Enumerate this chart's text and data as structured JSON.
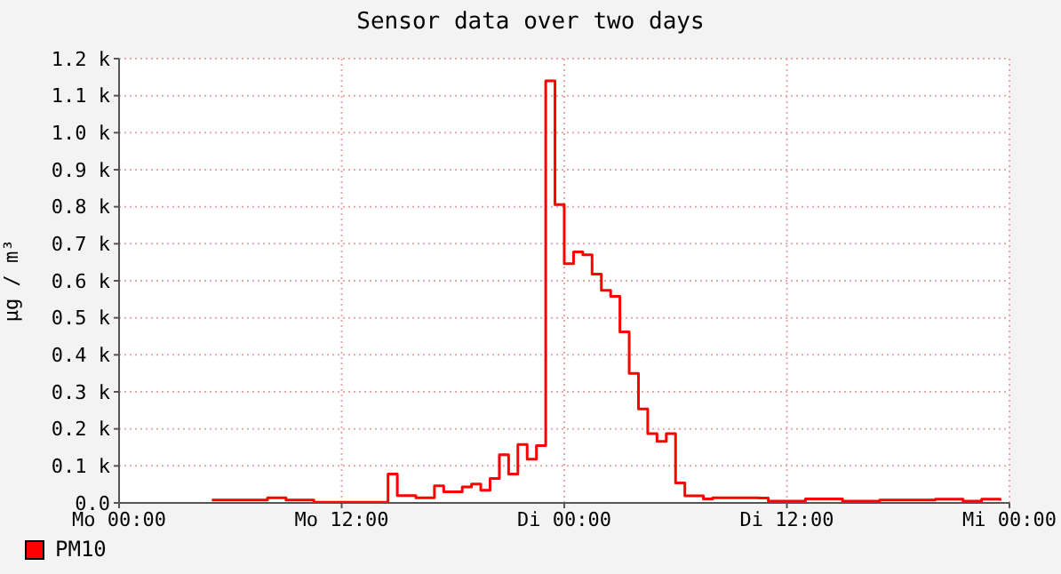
{
  "chart_data": {
    "type": "step",
    "title": "Sensor data over two days",
    "ylabel": "µg / m³",
    "categories": [
      "Mo 00:00",
      null,
      null,
      null,
      null,
      null,
      null,
      null,
      null,
      null,
      null,
      null,
      null,
      null,
      null,
      null,
      null,
      null,
      null,
      null,
      null,
      null,
      null,
      null,
      "Mo 12:00",
      null,
      null,
      null,
      null,
      null,
      null,
      null,
      null,
      null,
      null,
      null,
      null,
      null,
      null,
      null,
      null,
      null,
      null,
      null,
      null,
      null,
      null,
      null,
      "Di 00:00",
      null,
      null,
      null,
      null,
      null,
      null,
      null,
      null,
      null,
      null,
      null,
      null,
      null,
      null,
      null,
      null,
      null,
      null,
      null,
      null,
      null,
      null,
      null,
      "Di 12:00",
      null,
      null,
      null,
      null,
      null,
      null,
      null,
      null,
      null,
      null,
      null,
      null,
      null,
      null,
      null,
      null,
      null,
      null,
      null,
      null,
      null,
      null,
      null,
      "Mi 00:00"
    ],
    "series": [
      {
        "name": "PM10",
        "color": "#ff0000",
        "values": [
          null,
          null,
          null,
          null,
          null,
          null,
          null,
          null,
          null,
          null,
          8,
          8,
          8,
          8,
          8,
          8,
          14,
          14,
          8,
          8,
          8,
          2,
          2,
          2,
          2,
          2,
          2,
          2,
          2,
          78,
          20,
          20,
          14,
          14,
          46,
          30,
          30,
          43,
          51,
          34,
          66,
          130,
          78,
          158,
          118,
          155,
          1140,
          806,
          646,
          678,
          670,
          618,
          574,
          558,
          462,
          350,
          254,
          187,
          166,
          187,
          54,
          19,
          19,
          11,
          14,
          14,
          14,
          14,
          14,
          13,
          5,
          5,
          5,
          5,
          11,
          11,
          11,
          11,
          5,
          5,
          5,
          5,
          8,
          8,
          8,
          8,
          8,
          8,
          10,
          10,
          10,
          5,
          5,
          10,
          10,
          6,
          null
        ]
      }
    ],
    "ylim": [
      0,
      1200
    ],
    "yticks": [
      {
        "value": 0,
        "label": "0.0"
      },
      {
        "value": 100,
        "label": "0.1 k"
      },
      {
        "value": 200,
        "label": "0.2 k"
      },
      {
        "value": 300,
        "label": "0.3 k"
      },
      {
        "value": 400,
        "label": "0.4 k"
      },
      {
        "value": 500,
        "label": "0.5 k"
      },
      {
        "value": 600,
        "label": "0.6 k"
      },
      {
        "value": 700,
        "label": "0.7 k"
      },
      {
        "value": 800,
        "label": "0.8 k"
      },
      {
        "value": 900,
        "label": "0.9 k"
      },
      {
        "value": 1000,
        "label": "1.0 k"
      },
      {
        "value": 1100,
        "label": "1.1 k"
      },
      {
        "value": 1200,
        "label": "1.2 k"
      }
    ],
    "grid": true,
    "legend": "bottom left"
  }
}
